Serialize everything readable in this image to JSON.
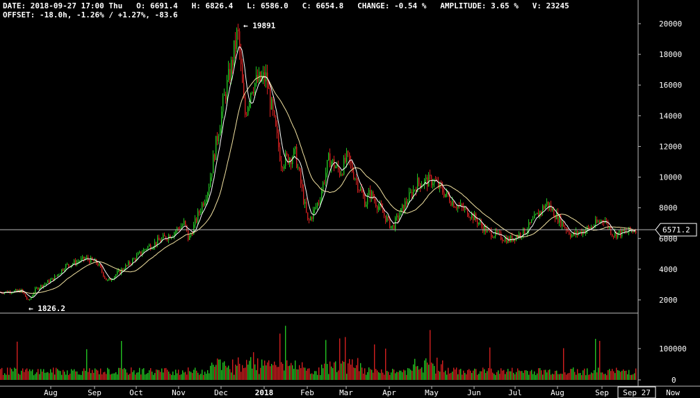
{
  "header": {
    "date_label": "DATE:",
    "date_value": "2018-09-27 17:00 Thu",
    "open_label": "O:",
    "open_value": "6691.4",
    "high_label": "H:",
    "high_value": "6826.4",
    "low_label": "L:",
    "low_value": "6586.0",
    "close_label": "C:",
    "close_value": "6654.8",
    "change_label": "CHANGE:",
    "change_value": "-0.54 %",
    "amplitude_label": "AMPLITUDE:",
    "amplitude_value": "3.65 %",
    "volume_label": "V:",
    "volume_value": "23245",
    "offset_label": "OFFSET:",
    "offset_value": "-18.0h, -1.26% / +1.27%, -83.6"
  },
  "crosshair": {
    "price_label": "6571.2",
    "price": 6571.2,
    "time_label": "Sep 27"
  },
  "annotations": {
    "high_label": "← 19891",
    "high_price": 19891,
    "low_label": "← 1826.2",
    "low_price": 1826.2
  },
  "colors": {
    "up": "#22c422",
    "down": "#d42020",
    "ma_fast": "#ffffff",
    "ma_slow": "#f3e3a2",
    "grid_line": "#888888",
    "text": "#ffffff"
  },
  "chart_data": {
    "type": "candlestick",
    "price_axis_ticks": [
      2000,
      4000,
      6000,
      8000,
      10000,
      12000,
      14000,
      16000,
      18000,
      20000
    ],
    "volume_axis_ticks": [
      "0",
      "100000"
    ],
    "time_axis_labels": [
      "Aug",
      "Sep",
      "Oct",
      "Nov",
      "Dec",
      "2018",
      "Feb",
      "Mar",
      "Apr",
      "May",
      "Jun",
      "Jul",
      "Aug",
      "Sep",
      "Now"
    ],
    "price_ylim": [
      800,
      20800
    ],
    "volume_ylim": [
      0,
      200000
    ],
    "price_path": [
      {
        "t": "2017-07-01",
        "p": 2500
      },
      {
        "t": "2017-07-16",
        "p": 2600
      },
      {
        "t": "2017-07-21",
        "p": 1900
      },
      {
        "t": "2017-07-26",
        "p": 2700
      },
      {
        "t": "2017-08-08",
        "p": 3400
      },
      {
        "t": "2017-08-16",
        "p": 4200
      },
      {
        "t": "2017-08-31",
        "p": 4700
      },
      {
        "t": "2017-09-08",
        "p": 4400
      },
      {
        "t": "2017-09-15",
        "p": 3200
      },
      {
        "t": "2017-09-30",
        "p": 4300
      },
      {
        "t": "2017-10-13",
        "p": 5400
      },
      {
        "t": "2017-10-31",
        "p": 6300
      },
      {
        "t": "2017-11-09",
        "p": 7000
      },
      {
        "t": "2017-11-12",
        "p": 5900
      },
      {
        "t": "2017-11-26",
        "p": 9300
      },
      {
        "t": "2017-12-07",
        "p": 15000
      },
      {
        "t": "2017-12-12",
        "p": 17000
      },
      {
        "t": "2017-12-17",
        "p": 19500
      },
      {
        "t": "2017-12-22",
        "p": 14000
      },
      {
        "t": "2017-12-27",
        "p": 16000
      },
      {
        "t": "2018-01-06",
        "p": 16500
      },
      {
        "t": "2018-01-17",
        "p": 11000
      },
      {
        "t": "2018-01-27",
        "p": 11500
      },
      {
        "t": "2018-02-05",
        "p": 7000
      },
      {
        "t": "2018-02-13",
        "p": 8500
      },
      {
        "t": "2018-02-20",
        "p": 11200
      },
      {
        "t": "2018-02-28",
        "p": 10300
      },
      {
        "t": "2018-03-05",
        "p": 11300
      },
      {
        "t": "2018-03-18",
        "p": 8300
      },
      {
        "t": "2018-03-21",
        "p": 9000
      },
      {
        "t": "2018-04-06",
        "p": 6700
      },
      {
        "t": "2018-04-15",
        "p": 8200
      },
      {
        "t": "2018-04-24",
        "p": 9600
      },
      {
        "t": "2018-05-05",
        "p": 9800
      },
      {
        "t": "2018-05-20",
        "p": 8300
      },
      {
        "t": "2018-06-01",
        "p": 7600
      },
      {
        "t": "2018-06-12",
        "p": 6500
      },
      {
        "t": "2018-06-28",
        "p": 5900
      },
      {
        "t": "2018-07-10",
        "p": 6500
      },
      {
        "t": "2018-07-25",
        "p": 8300
      },
      {
        "t": "2018-08-05",
        "p": 7000
      },
      {
        "t": "2018-08-12",
        "p": 6200
      },
      {
        "t": "2018-08-25",
        "p": 6700
      },
      {
        "t": "2018-09-04",
        "p": 7300
      },
      {
        "t": "2018-09-10",
        "p": 6300
      },
      {
        "t": "2018-09-20",
        "p": 6400
      },
      {
        "t": "2018-09-27",
        "p": 6655
      }
    ]
  }
}
